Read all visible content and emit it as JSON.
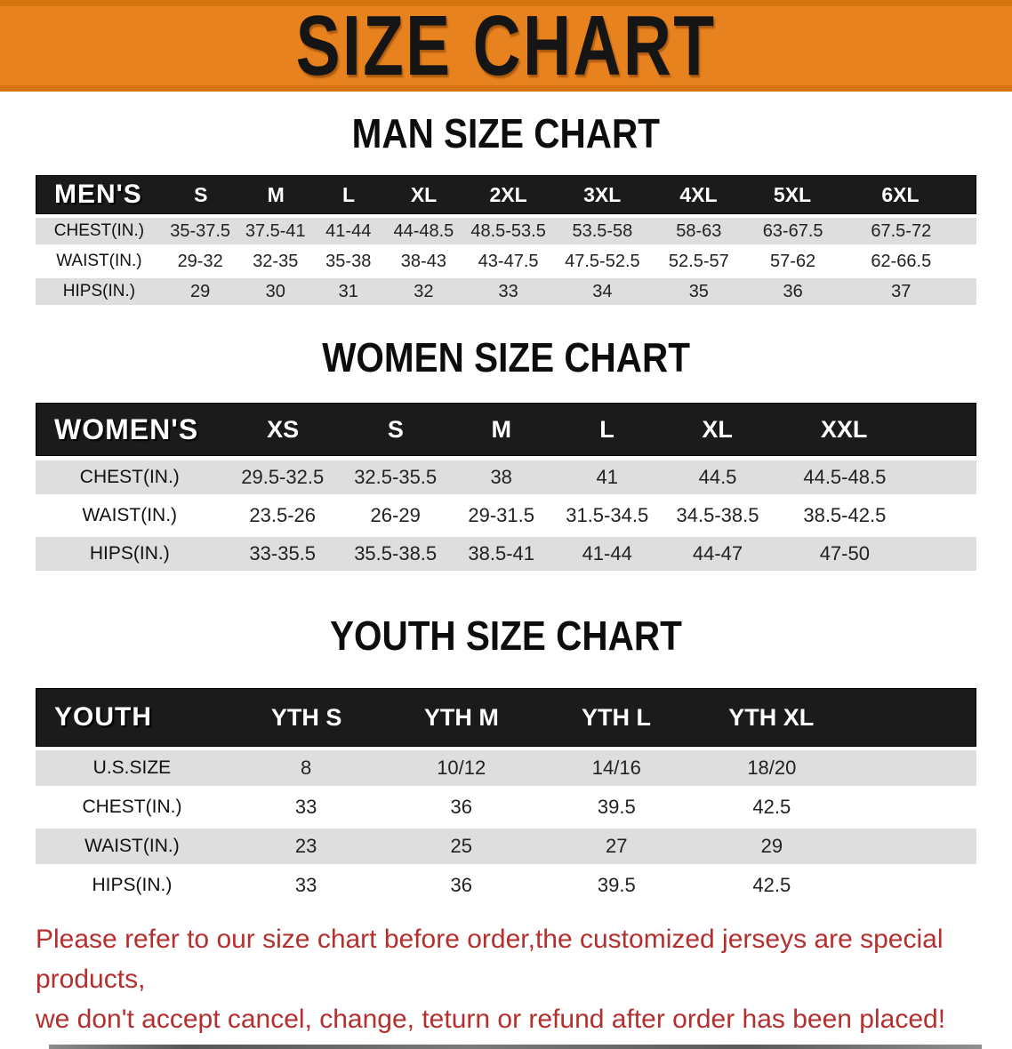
{
  "banner": {
    "title": "SIZE CHART",
    "background_color": "#E8821E",
    "edge_color": "#D4740F",
    "text_color": "#151515"
  },
  "sections": [
    {
      "id": "men",
      "heading": "MAN SIZE CHART",
      "table": {
        "label": "MEN'S",
        "columns": [
          "S",
          "M",
          "L",
          "XL",
          "2XL",
          "3XL",
          "4XL",
          "5XL",
          "6XL"
        ],
        "rows": [
          {
            "label": "CHEST(IN.)",
            "values": [
              "35-37.5",
              "37.5-41",
              "41-44",
              "44-48.5",
              "48.5-53.5",
              "53.5-58",
              "58-63",
              "63-67.5",
              "67.5-72"
            ]
          },
          {
            "label": "WAIST(IN.)",
            "values": [
              "29-32",
              "32-35",
              "35-38",
              "38-43",
              "43-47.5",
              "47.5-52.5",
              "52.5-57",
              "57-62",
              "62-66.5"
            ]
          },
          {
            "label": "HIPS(IN.)",
            "values": [
              "29",
              "30",
              "31",
              "32",
              "33",
              "34",
              "35",
              "36",
              "37"
            ]
          }
        ]
      }
    },
    {
      "id": "women",
      "heading": "WOMEN SIZE CHART",
      "table": {
        "label": "WOMEN'S",
        "columns": [
          "XS",
          "S",
          "M",
          "L",
          "XL",
          "XXL"
        ],
        "rows": [
          {
            "label": "CHEST(IN.)",
            "values": [
              "29.5-32.5",
              "32.5-35.5",
              "38",
              "41",
              "44.5",
              "44.5-48.5"
            ]
          },
          {
            "label": "WAIST(IN.)",
            "values": [
              "23.5-26",
              "26-29",
              "29-31.5",
              "31.5-34.5",
              "34.5-38.5",
              "38.5-42.5"
            ]
          },
          {
            "label": "HIPS(IN.)",
            "values": [
              "33-35.5",
              "35.5-38.5",
              "38.5-41",
              "41-44",
              "44-47",
              "47-50"
            ]
          }
        ]
      }
    },
    {
      "id": "youth",
      "heading": "YOUTH SIZE CHART",
      "table": {
        "label": "YOUTH",
        "columns": [
          "YTH S",
          "YTH M",
          "YTH L",
          "YTH XL"
        ],
        "rows": [
          {
            "label": "U.S.SIZE",
            "values": [
              "8",
              "10/12",
              "14/16",
              "18/20"
            ]
          },
          {
            "label": "CHEST(IN.)",
            "values": [
              "33",
              "36",
              "39.5",
              "42.5"
            ]
          },
          {
            "label": "WAIST(IN.)",
            "values": [
              "23",
              "25",
              "27",
              "29"
            ]
          },
          {
            "label": "HIPS(IN.)",
            "values": [
              "33",
              "36",
              "39.5",
              "42.5"
            ]
          }
        ]
      }
    }
  ],
  "disclaimer": {
    "line1": "Please refer to our size chart before order,the customized jerseys are special products,",
    "line2": "we don't accept cancel, change, teturn or refund after order has been placed!",
    "color": "#B3302E"
  },
  "colors": {
    "header_bar_black": "#1b1b1b",
    "row_stripe_gray": "#dedede",
    "row_stripe_white": "#ffffff",
    "divider_gray": "#6e6e6e"
  }
}
